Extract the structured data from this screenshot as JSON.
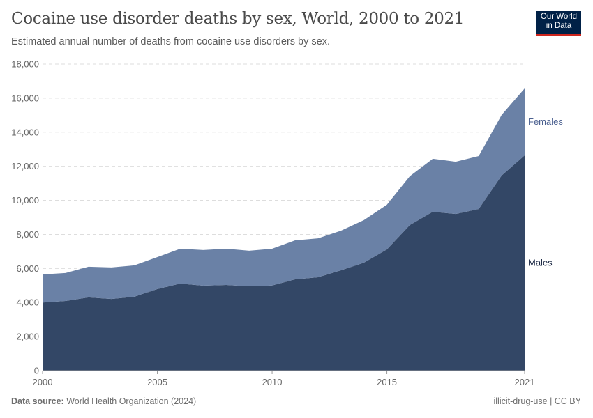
{
  "header": {
    "title": "Cocaine use disorder deaths by sex, World, 2000 to 2021",
    "subtitle": "Estimated annual number of deaths from cocaine use disorders by sex.",
    "logo": "Our World in Data"
  },
  "footer": {
    "source_label": "Data source:",
    "source": "World Health Organization (2024)",
    "license": "illicit-drug-use | CC BY"
  },
  "chart_data": {
    "type": "area",
    "stacked": true,
    "x": [
      2000,
      2001,
      2002,
      2003,
      2004,
      2005,
      2006,
      2007,
      2008,
      2009,
      2010,
      2011,
      2012,
      2013,
      2014,
      2015,
      2016,
      2017,
      2018,
      2019,
      2020,
      2021
    ],
    "series": [
      {
        "name": "Males",
        "color": "#334766",
        "values": [
          4000,
          4090,
          4300,
          4210,
          4340,
          4790,
          5110,
          4990,
          5030,
          4950,
          5000,
          5360,
          5480,
          5890,
          6340,
          7120,
          8550,
          9330,
          9200,
          9490,
          11460,
          12640
        ]
      },
      {
        "name": "Females",
        "color": "#6a81a6",
        "values": [
          1650,
          1640,
          1800,
          1850,
          1840,
          1880,
          2050,
          2090,
          2130,
          2090,
          2160,
          2290,
          2290,
          2330,
          2500,
          2620,
          2870,
          3110,
          3070,
          3110,
          3560,
          3930
        ]
      }
    ],
    "ylim": [
      0,
      18000
    ],
    "yticks": [
      0,
      2000,
      4000,
      6000,
      8000,
      10000,
      12000,
      14000,
      16000,
      18000
    ],
    "xticks": [
      2000,
      2005,
      2010,
      2015,
      2021
    ],
    "grid": "horizontal dashed",
    "legend": "right, inline labels"
  }
}
